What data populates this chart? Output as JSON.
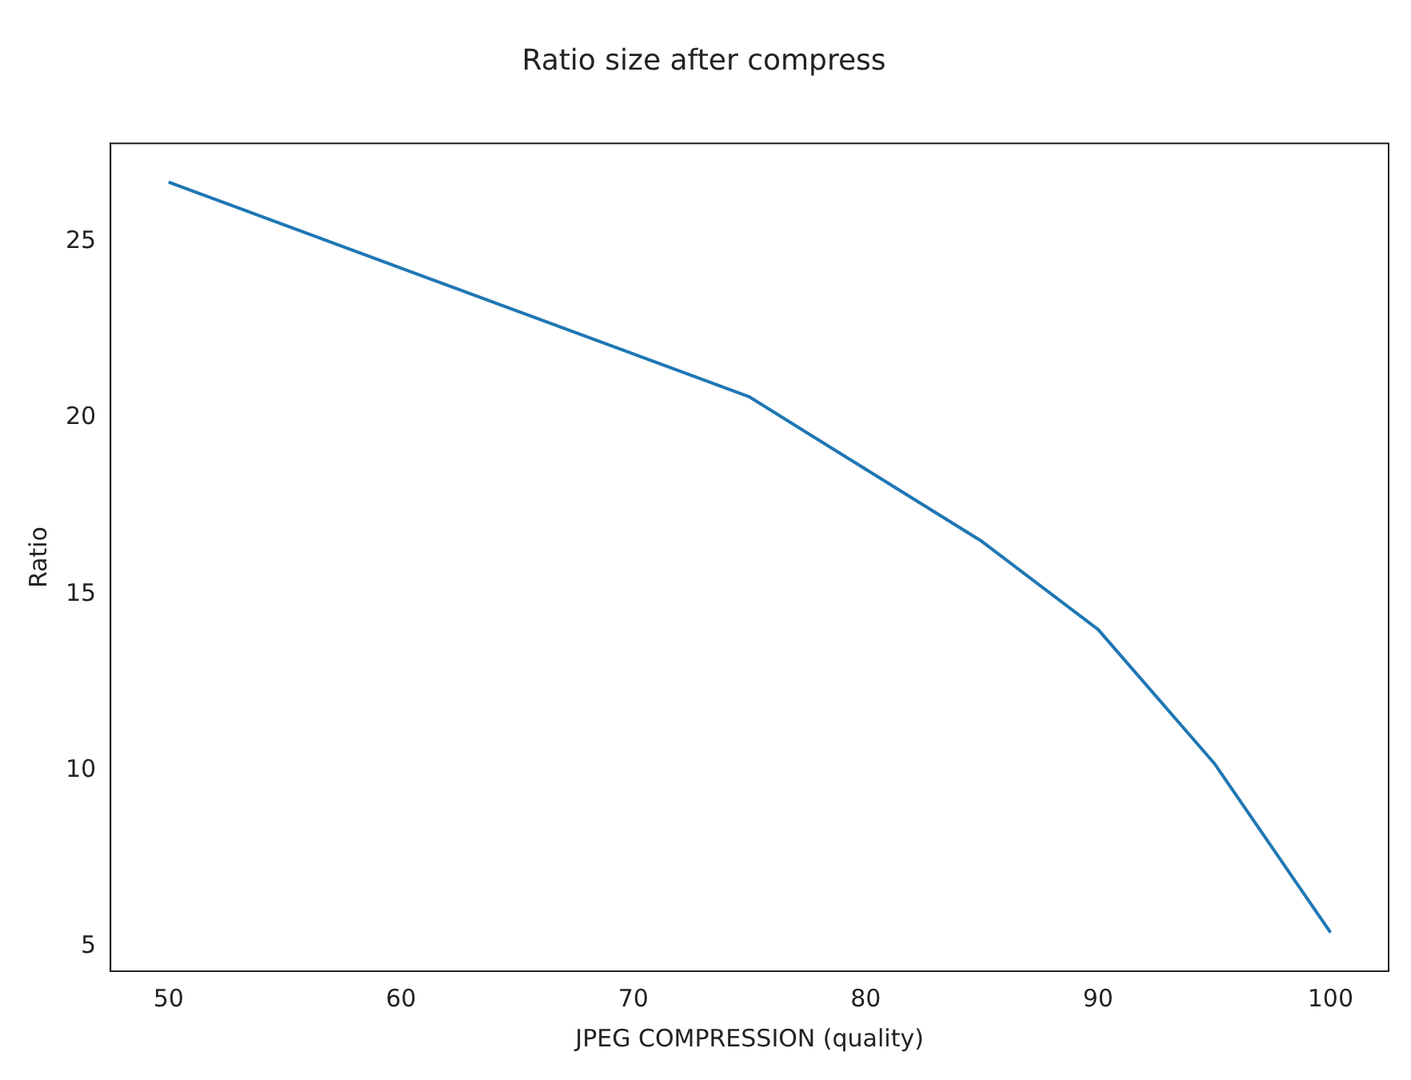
{
  "chart_data": {
    "type": "line",
    "title": "Ratio size after compress",
    "xlabel": "JPEG COMPRESSION (quality)",
    "ylabel": "Ratio",
    "x": [
      50,
      75,
      85,
      90,
      95,
      100
    ],
    "series": [
      {
        "color": "#1f77b4",
        "values": [
          26.7,
          20.6,
          16.5,
          14.0,
          10.2,
          5.4
        ]
      }
    ],
    "xlim": [
      47.5,
      102.5
    ],
    "xticks": [
      50,
      60,
      70,
      80,
      90,
      100
    ],
    "ylim": [
      4.3,
      27.8
    ],
    "yticks": [
      5,
      10,
      15,
      20,
      25
    ],
    "grid": false,
    "legend": false,
    "marker": "none",
    "line_style": "solid"
  }
}
